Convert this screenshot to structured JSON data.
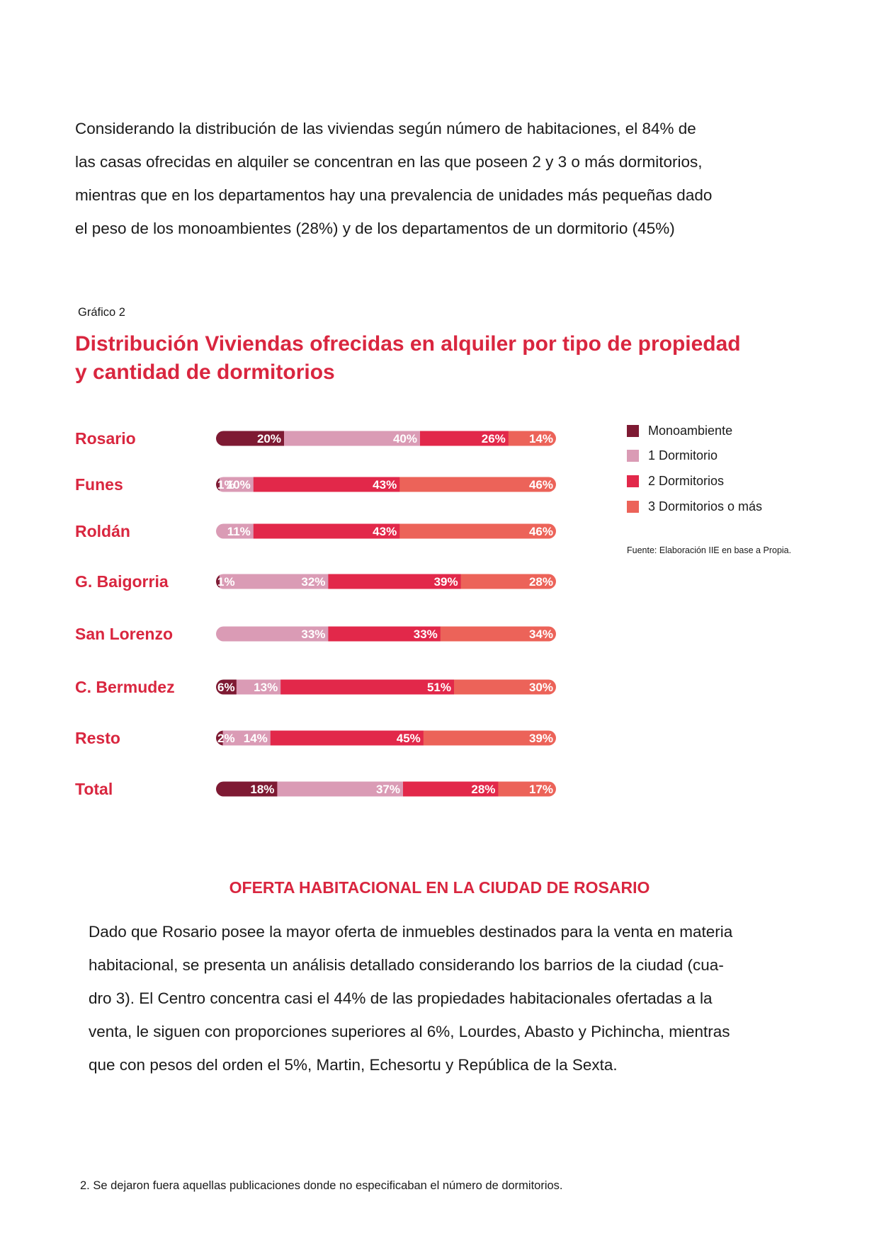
{
  "intro_lines": [
    "Considerando la distribución de las viviendas según número de habitaciones, el 84% de",
    "las casas ofrecidas en alquiler se concentran en las que poseen 2 y 3 o más dormitorios,",
    "mientras que en los departamentos hay una prevalencia de unidades más pequeñas dado",
    "el peso de los monoambientes (28%) y de los departamentos de un dormitorio (45%)"
  ],
  "chart_label": "Gráfico 2",
  "chart_title_lines": [
    "Distribución Viviendas ofrecidas en alquiler por tipo de propiedad",
    "y cantidad de dormitorios"
  ],
  "chart_data": {
    "type": "bar",
    "orientation": "horizontal",
    "stacked": true,
    "title": "Distribución Viviendas ofrecidas en alquiler por tipo de propiedad y cantidad de dormitorios",
    "categories": [
      "Rosario",
      "Funes",
      "Roldán",
      "G. Baigorria",
      "San Lorenzo",
      "C. Bermudez",
      "Resto",
      "Total"
    ],
    "series": [
      {
        "name": "Monoambiente",
        "color": "#7e1a33",
        "values": [
          20,
          1,
          0,
          1,
          0,
          6,
          2,
          18
        ]
      },
      {
        "name": "1 Dormitorio",
        "color": "#da9bb5",
        "values": [
          40,
          10,
          11,
          32,
          33,
          13,
          14,
          37
        ]
      },
      {
        "name": "2 Dormitorios",
        "color": "#e2284a",
        "values": [
          26,
          43,
          43,
          39,
          33,
          51,
          45,
          28
        ]
      },
      {
        "name": "3 Dormitorios o más",
        "color": "#ec6359",
        "values": [
          14,
          46,
          46,
          28,
          34,
          30,
          39,
          17
        ]
      }
    ],
    "value_suffix": "%",
    "legend_position": "right",
    "grid": false
  },
  "legend_items": [
    "Monoambiente",
    "1 Dormitorio",
    "2 Dormitorios",
    "3 Dormitorios o más"
  ],
  "source": "Fuente: Elaboración IIE en base a Propia.",
  "section_title": "OFERTA HABITACIONAL EN LA CIUDAD DE ROSARIO",
  "body_lines": [
    "Dado que Rosario posee la mayor oferta de inmuebles destinados para la venta en materia",
    "habitacional, se presenta un análisis detallado considerando los barrios de la ciudad (cua-",
    "dro 3). El Centro concentra casi el 44% de las propiedades habitacionales ofertadas a la",
    "venta, le siguen con proporciones superiores al 6%, Lourdes, Abasto y Pichincha, mientras",
    "que con pesos del orden el 5%, Martin, Echesortu y República de la Sexta."
  ],
  "footnote": "2. Se dejaron fuera aquellas publicaciones donde no especificaban el número de dormitorios."
}
